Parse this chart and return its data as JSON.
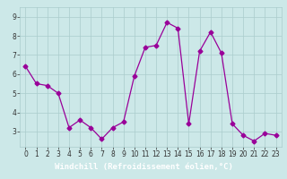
{
  "x": [
    0,
    1,
    2,
    3,
    4,
    5,
    6,
    7,
    8,
    9,
    10,
    11,
    12,
    13,
    14,
    15,
    16,
    17,
    18,
    19,
    20,
    21,
    22,
    23
  ],
  "y": [
    6.4,
    5.5,
    5.4,
    5.0,
    3.2,
    3.6,
    3.2,
    2.6,
    3.2,
    3.5,
    5.9,
    7.4,
    7.5,
    8.7,
    8.4,
    3.4,
    7.2,
    8.2,
    7.1,
    3.4,
    2.8,
    2.5,
    2.9,
    2.8
  ],
  "line_color": "#990099",
  "marker": "D",
  "marker_size": 2.5,
  "bg_color": "#cce8e8",
  "grid_color": "#aacccc",
  "xlabel": "Windchill (Refroidissement éolien,°C)",
  "xlabel_color": "#ffffff",
  "xlabel_bg": "#7b3f7b",
  "ylim": [
    2.2,
    9.5
  ],
  "yticks": [
    3,
    4,
    5,
    6,
    7,
    8,
    9
  ],
  "xlim": [
    -0.5,
    23.5
  ],
  "xticks": [
    0,
    1,
    2,
    3,
    4,
    5,
    6,
    7,
    8,
    9,
    10,
    11,
    12,
    13,
    14,
    15,
    16,
    17,
    18,
    19,
    20,
    21,
    22,
    23
  ],
  "tick_fontsize": 5.5,
  "xlabel_fontsize": 6.5
}
